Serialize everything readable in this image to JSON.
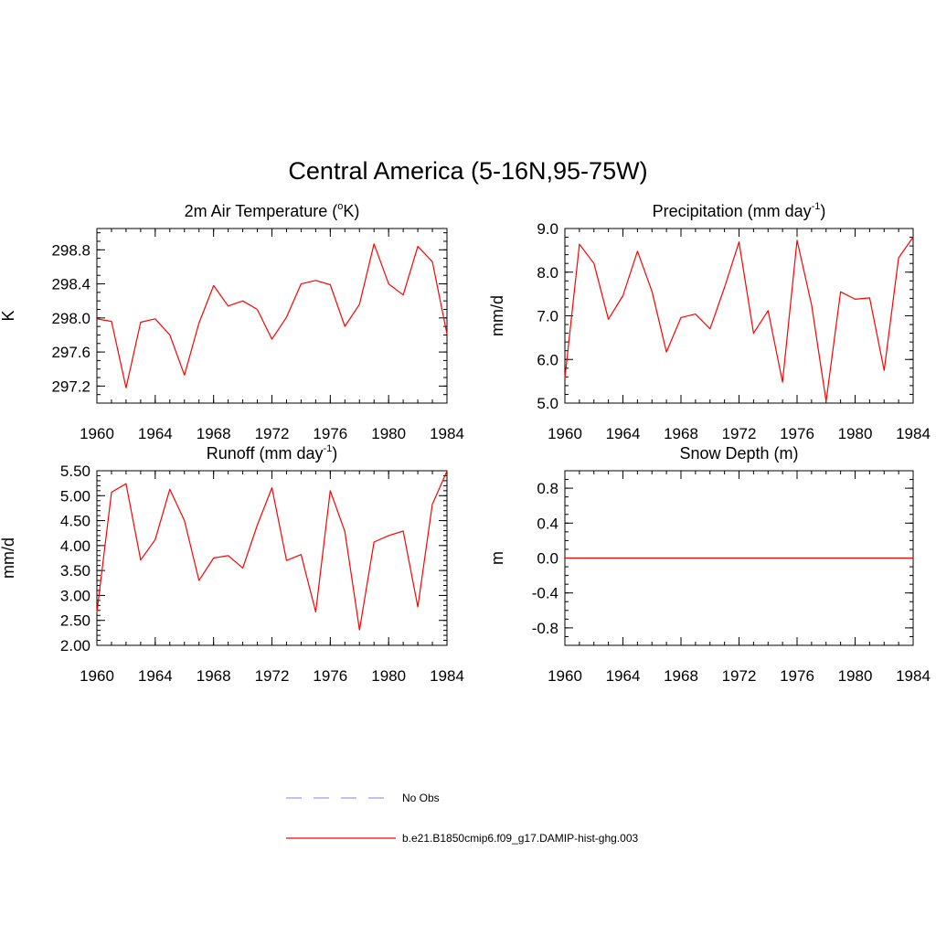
{
  "figure": {
    "title": "Central America (5-16N,95-75W)"
  },
  "legend": {
    "placement": "bottom-center",
    "entries": [
      {
        "label": "No Obs",
        "color": "#9999ff",
        "dash": "dashed"
      },
      {
        "label": "b.e21.B1850cmip6.f09_g17.DAMIP-hist-ghg.003",
        "color": "#ff0000",
        "dash": "solid"
      }
    ]
  },
  "chart_data": [
    {
      "type": "line",
      "title": {
        "main": "2m Air Temperature (",
        "sup": "o",
        "tail": "K)"
      },
      "ylabel": "K",
      "xlim": [
        1960,
        1984
      ],
      "ylim": [
        297.0,
        299.05
      ],
      "xticks": [
        1960,
        1964,
        1968,
        1972,
        1976,
        1980,
        1984
      ],
      "yticks": [
        297.2,
        297.6,
        298.0,
        298.4,
        298.8
      ],
      "ytick_labels": [
        "297.2",
        "297.6",
        "298.0",
        "298.4",
        "298.8"
      ],
      "y_minor_step": 0.1,
      "grid": false,
      "color": "#ff0000",
      "x": [
        1960,
        1961,
        1962,
        1963,
        1964,
        1965,
        1966,
        1967,
        1968,
        1969,
        1970,
        1971,
        1972,
        1973,
        1974,
        1975,
        1976,
        1977,
        1978,
        1979,
        1980,
        1981,
        1982,
        1983,
        1984
      ],
      "series": [
        {
          "values": [
            297.99,
            297.96,
            297.18,
            297.95,
            297.99,
            297.8,
            297.33,
            297.94,
            298.38,
            298.14,
            298.2,
            298.1,
            297.75,
            298.01,
            298.4,
            298.44,
            298.39,
            297.9,
            298.16,
            298.87,
            298.4,
            298.27,
            298.84,
            298.66,
            297.81
          ]
        }
      ]
    },
    {
      "type": "line",
      "title": {
        "main": "Precipitation (mm day",
        "sup": "-1",
        "tail": ")"
      },
      "ylabel": "mm/d",
      "xlim": [
        1960,
        1984
      ],
      "ylim": [
        5.0,
        9.0
      ],
      "xticks": [
        1960,
        1964,
        1968,
        1972,
        1976,
        1980,
        1984
      ],
      "yticks": [
        5.0,
        6.0,
        7.0,
        8.0,
        9.0
      ],
      "ytick_labels": [
        "5.0",
        "6.0",
        "7.0",
        "8.0",
        "9.0"
      ],
      "y_minor_step": 0.2,
      "grid": false,
      "color": "#ff0000",
      "x": [
        1960,
        1961,
        1962,
        1963,
        1964,
        1965,
        1966,
        1967,
        1968,
        1969,
        1970,
        1971,
        1972,
        1973,
        1974,
        1975,
        1976,
        1977,
        1978,
        1979,
        1980,
        1981,
        1982,
        1983,
        1984
      ],
      "series": [
        {
          "values": [
            5.57,
            8.64,
            8.2,
            6.92,
            7.46,
            8.48,
            7.56,
            6.17,
            6.96,
            7.04,
            6.7,
            7.65,
            8.69,
            6.6,
            7.12,
            5.48,
            8.73,
            7.25,
            5.04,
            7.55,
            7.38,
            7.41,
            5.75,
            8.33,
            8.8
          ]
        }
      ]
    },
    {
      "type": "line",
      "title": {
        "main": "Runoff (mm day",
        "sup": "-1",
        "tail": ")"
      },
      "ylabel": "mm/d",
      "xlim": [
        1960,
        1984
      ],
      "ylim": [
        2.0,
        5.5
      ],
      "xticks": [
        1960,
        1964,
        1968,
        1972,
        1976,
        1980,
        1984
      ],
      "yticks": [
        2.0,
        2.5,
        3.0,
        3.5,
        4.0,
        4.5,
        5.0,
        5.5
      ],
      "ytick_labels": [
        "2.00",
        "2.50",
        "3.00",
        "3.50",
        "4.00",
        "4.50",
        "5.00",
        "5.50"
      ],
      "y_minor_step": 0.1,
      "grid": false,
      "color": "#ff0000",
      "x": [
        1960,
        1961,
        1962,
        1963,
        1964,
        1965,
        1966,
        1967,
        1968,
        1969,
        1970,
        1971,
        1972,
        1973,
        1974,
        1975,
        1976,
        1977,
        1978,
        1979,
        1980,
        1981,
        1982,
        1983,
        1984
      ],
      "series": [
        {
          "values": [
            2.66,
            5.07,
            5.24,
            3.71,
            4.12,
            5.13,
            4.5,
            3.3,
            3.75,
            3.8,
            3.55,
            4.41,
            5.16,
            3.7,
            3.82,
            2.67,
            5.1,
            4.28,
            2.31,
            4.07,
            4.2,
            4.29,
            2.77,
            4.83,
            5.49
          ]
        }
      ]
    },
    {
      "type": "line",
      "title": {
        "main": "Snow Depth (m)",
        "sup": "",
        "tail": ""
      },
      "ylabel": "m",
      "xlim": [
        1960,
        1984
      ],
      "ylim": [
        -1.0,
        1.0
      ],
      "xticks": [
        1960,
        1964,
        1968,
        1972,
        1976,
        1980,
        1984
      ],
      "yticks": [
        -0.8,
        -0.4,
        0.0,
        0.4,
        0.8
      ],
      "ytick_labels": [
        "-0.8",
        "-0.4",
        "0.0",
        "0.4",
        "0.8"
      ],
      "y_minor_step": 0.1,
      "grid": false,
      "color": "#ff0000",
      "x": [
        1960,
        1961,
        1962,
        1963,
        1964,
        1965,
        1966,
        1967,
        1968,
        1969,
        1970,
        1971,
        1972,
        1973,
        1974,
        1975,
        1976,
        1977,
        1978,
        1979,
        1980,
        1981,
        1982,
        1983,
        1984
      ],
      "series": [
        {
          "values": [
            0,
            0,
            0,
            0,
            0,
            0,
            0,
            0,
            0,
            0,
            0,
            0,
            0,
            0,
            0,
            0,
            0,
            0,
            0,
            0,
            0,
            0,
            0,
            0,
            0
          ]
        }
      ]
    }
  ]
}
